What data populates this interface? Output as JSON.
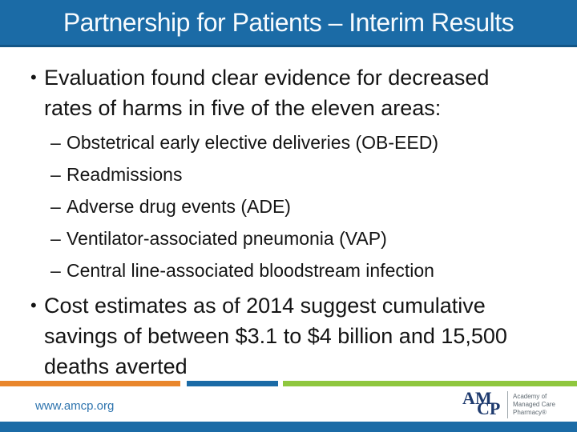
{
  "slide": {
    "title": "Partnership for Patients – Interim Results"
  },
  "markers": {
    "bullet": "•",
    "dash": "–"
  },
  "bullets": [
    {
      "text": "Evaluation found clear evidence for decreased rates of harms in five of the eleven areas:",
      "lines": [
        "Evaluation found clear evidence for decreased",
        "rates of harms in five of the eleven areas:"
      ],
      "sub": [
        "Obstetrical early elective deliveries (OB-EED)",
        "Readmissions",
        "Adverse drug events (ADE)",
        "Ventilator-associated pneumonia (VAP)",
        "Central line-associated bloodstream infection"
      ]
    },
    {
      "text": "Cost estimates as of 2014 suggest cumulative savings of between $3.1 to $4 billion and 15,500 deaths averted",
      "lines": [
        "Cost estimates as of 2014 suggest cumulative",
        "savings of between $3.1 to $4 billion and 15,500",
        "deaths averted"
      ]
    }
  ],
  "footer": {
    "website": "www.amcp.org",
    "logo": {
      "monogram_top": "AM",
      "monogram_bottom": "CP",
      "tagline": [
        "Academy of",
        "Managed Care",
        "Pharmacy®"
      ]
    }
  },
  "colors": {
    "banner_blue": "#1B6BA6",
    "accent_orange": "#E9862C",
    "accent_green": "#8FC73E",
    "link_blue": "#2E74AE",
    "logo_navy": "#1E3A6E",
    "tagline_gray": "#5F6A72",
    "title_text": "#F7FBFE",
    "body_text": "#141414"
  }
}
